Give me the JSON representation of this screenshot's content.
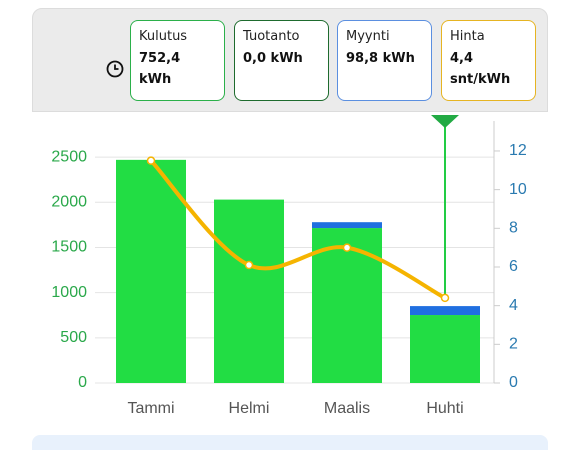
{
  "cards": [
    {
      "label": "Kulutus",
      "value": "752,4 kWh",
      "color": "#2bb04a"
    },
    {
      "label": "Tuotanto",
      "value": "0,0 kWh",
      "color": "#1e6b2e"
    },
    {
      "label": "Myynti",
      "value": "98,8 kWh",
      "color": "#5b8fe0"
    },
    {
      "label": "Hinta",
      "value": "4,4 snt/kWh",
      "color": "#e6b422"
    }
  ],
  "chart_data": {
    "type": "bar-line",
    "categories": [
      "Tammi",
      "Helmi",
      "Maalis",
      "Huhti"
    ],
    "series": [
      {
        "type": "bar",
        "color": "#22dd44",
        "values": [
          2470,
          2030,
          1715,
          752.4
        ]
      },
      {
        "type": "bar",
        "color": "#1f6fe0",
        "values": [
          0,
          0,
          65,
          98.8
        ]
      },
      {
        "type": "line",
        "axis": "y2",
        "color": "#f5b400",
        "values": [
          11.5,
          6.1,
          7.0,
          4.4
        ]
      }
    ],
    "ylim": [
      0,
      2900
    ],
    "yticks": [
      0,
      500,
      1000,
      1500,
      2000,
      2500
    ],
    "y2lim": [
      0,
      13.55
    ],
    "y2ticks": [
      0,
      2,
      4,
      6,
      8,
      10,
      12
    ],
    "grid": true,
    "stacked": true,
    "ytick_color": "#2aa84a",
    "y2tick_color": "#2a7ab0"
  }
}
